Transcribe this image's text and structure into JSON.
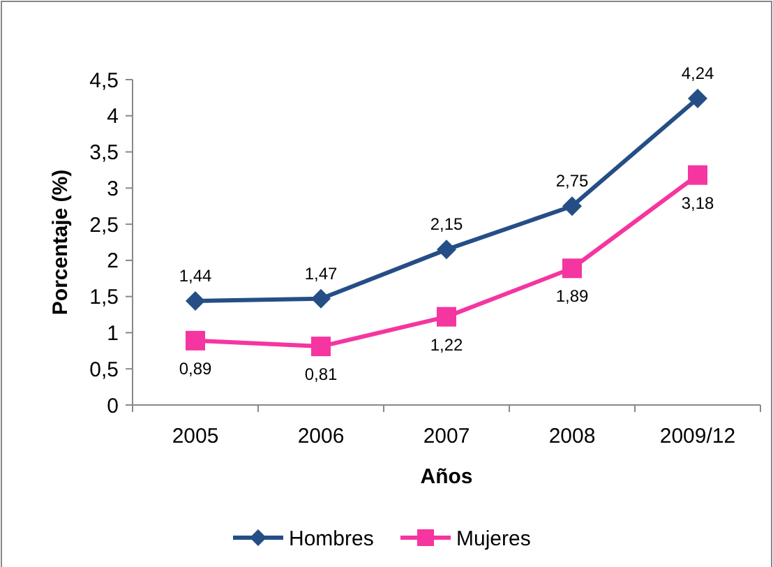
{
  "chart_data": {
    "type": "line",
    "xlabel": "Años",
    "ylabel": "Porcentaje (%)",
    "categories": [
      "2005",
      "2006",
      "2007",
      "2008",
      "2009/12"
    ],
    "ylim": [
      0,
      4.5
    ],
    "yticks": [
      0,
      {
        "value": 0.5,
        "label": "0,5"
      },
      1,
      {
        "value": 1.5,
        "label": "1,5"
      },
      2,
      {
        "value": 2.5,
        "label": "2,5"
      },
      3,
      {
        "value": 3.5,
        "label": "3,5"
      },
      4,
      {
        "value": 4.5,
        "label": "4,5"
      }
    ],
    "grid": false,
    "legend": "bottom",
    "line_style": "solid",
    "series": [
      {
        "name": "Hombres",
        "color": "#254e86",
        "marker": "diamond",
        "values": [
          1.44,
          1.47,
          2.15,
          2.75,
          4.24
        ],
        "value_labels": [
          "1,44",
          "1,47",
          "2,15",
          "2,75",
          "4,24"
        ]
      },
      {
        "name": "Mujeres",
        "color": "#f535a0",
        "marker": "square",
        "values": [
          0.89,
          0.81,
          1.22,
          1.89,
          3.18
        ],
        "value_labels": [
          "0,89",
          "0,81",
          "1,22",
          "1,89",
          "3,18"
        ]
      }
    ]
  }
}
